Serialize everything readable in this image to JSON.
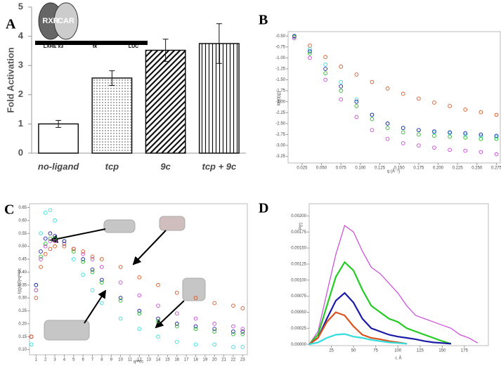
{
  "chart_data": [
    {
      "type": "bar",
      "panel": "A",
      "ylabel": "Fold Activation",
      "categories": [
        "no-ligand",
        "tcp",
        "9c",
        "tcp + 9c"
      ],
      "values": [
        1,
        2.57,
        3.52,
        3.75
      ],
      "errors": [
        0.12,
        0.25,
        0.38,
        0.68
      ],
      "fills": [
        "none",
        "dots",
        "diagonal",
        "vertical"
      ],
      "ylim": [
        0,
        5
      ],
      "yticks": [
        0,
        1,
        2,
        3,
        4,
        5
      ],
      "annotations": [
        "RXR",
        "CAR",
        "LXRE x3",
        "tk",
        "LUC"
      ]
    },
    {
      "type": "scatter",
      "panel": "B",
      "xlabel": "q (Å⁻¹)",
      "ylabel": "log(I(q))",
      "x": [
        0.015,
        0.035,
        0.055,
        0.075,
        0.095,
        0.115,
        0.135,
        0.155,
        0.175,
        0.195,
        0.215,
        0.235,
        0.255,
        0.275
      ],
      "series": [
        {
          "color": "#d9541e",
          "values": [
            -0.5,
            -0.72,
            -0.98,
            -1.2,
            -1.38,
            -1.55,
            -1.7,
            -1.82,
            -1.93,
            -2.02,
            -2.1,
            -2.18,
            -2.24,
            -2.3
          ]
        },
        {
          "color": "#33dddd",
          "values": [
            -0.5,
            -0.8,
            -1.15,
            -1.55,
            -1.95,
            -2.3,
            -2.5,
            -2.6,
            -2.65,
            -2.7,
            -2.72,
            -2.75,
            -2.78,
            -2.8
          ]
        },
        {
          "color": "#1a1aa8",
          "values": [
            -0.5,
            -0.85,
            -1.25,
            -1.65,
            -2.0,
            -2.3,
            -2.5,
            -2.6,
            -2.65,
            -2.68,
            -2.7,
            -2.72,
            -2.75,
            -2.78
          ]
        },
        {
          "color": "#22bb22",
          "values": [
            -0.52,
            -0.9,
            -1.35,
            -1.75,
            -2.1,
            -2.4,
            -2.6,
            -2.7,
            -2.75,
            -2.78,
            -2.8,
            -2.82,
            -2.85,
            -2.85
          ]
        },
        {
          "color": "#cc44d8",
          "values": [
            -0.55,
            -1.0,
            -1.5,
            -1.95,
            -2.35,
            -2.65,
            -2.85,
            -2.95,
            -3.0,
            -3.05,
            -3.1,
            -3.12,
            -3.15,
            -3.2
          ]
        }
      ],
      "xlim": [
        0.007,
        0.28
      ],
      "xticks": [
        0.025,
        {
          "value": 0.05,
          "label": "0.050"
        },
        0.075,
        {
          "value": 0.1,
          "label": "0.100"
        },
        0.125,
        {
          "value": 0.15,
          "label": "0.150"
        },
        0.175,
        {
          "value": 0.2,
          "label": "0.200"
        },
        0.225,
        {
          "value": 0.25,
          "label": "0.250"
        },
        0.275
      ],
      "ylim": [
        -3.4,
        -0.4
      ],
      "yticks": [
        {
          "value": -0.5,
          "label": "-0.50"
        },
        -0.75,
        {
          "value": -1,
          "label": "-1.00"
        },
        -1.25,
        {
          "value": -1.5,
          "label": "-1.50"
        },
        -1.75,
        {
          "value": -2,
          "label": "-2.00"
        },
        -2.25,
        {
          "value": -2.5,
          "label": "-2.50"
        },
        -2.75,
        {
          "value": -3,
          "label": "-3.00"
        },
        -3.25
      ]
    },
    {
      "type": "scatter",
      "panel": "C",
      "xlabel": "q²•Vc",
      "ylabel": "I(q)/I(0)•q²•Vc",
      "x": [
        0.5,
        1,
        1.5,
        2,
        2.5,
        3,
        4,
        5,
        6,
        7,
        8,
        10,
        12,
        14,
        16,
        18,
        20,
        22,
        23
      ],
      "series": [
        {
          "color": "#33dddd",
          "values": [
            0.12,
            0.35,
            0.55,
            0.63,
            0.64,
            0.6,
            0.52,
            0.45,
            0.39,
            0.33,
            0.28,
            0.22,
            0.18,
            0.15,
            0.13,
            0.12,
            0.12,
            0.11,
            0.11
          ]
        },
        {
          "color": "#1a1aa8",
          "values": [
            0.15,
            0.35,
            0.48,
            0.53,
            0.55,
            0.54,
            0.52,
            0.49,
            0.45,
            0.41,
            0.37,
            0.3,
            0.25,
            0.22,
            0.2,
            0.19,
            0.18,
            0.17,
            0.17
          ]
        },
        {
          "color": "#22bb22",
          "values": [
            0.15,
            0.33,
            0.46,
            0.51,
            0.53,
            0.53,
            0.51,
            0.48,
            0.44,
            0.4,
            0.36,
            0.29,
            0.24,
            0.21,
            0.19,
            0.18,
            0.17,
            0.16,
            0.16
          ]
        },
        {
          "color": "#cc44d8",
          "values": [
            0.15,
            0.33,
            0.45,
            0.5,
            0.52,
            0.52,
            0.51,
            0.49,
            0.47,
            0.45,
            0.42,
            0.36,
            0.31,
            0.27,
            0.24,
            0.22,
            0.2,
            0.19,
            0.18
          ]
        },
        {
          "color": "#d9541e",
          "values": [
            0.15,
            0.3,
            0.42,
            0.47,
            0.49,
            0.5,
            0.5,
            0.49,
            0.48,
            0.46,
            0.45,
            0.42,
            0.38,
            0.35,
            0.32,
            0.3,
            0.28,
            0.27,
            0.26
          ]
        }
      ],
      "xlim": [
        0.3,
        23.5
      ],
      "xticks": [
        1,
        2,
        3,
        4,
        5,
        6,
        7,
        8,
        9,
        10,
        11,
        12,
        13,
        14,
        15,
        16,
        17,
        18,
        19,
        20,
        21,
        22,
        23
      ],
      "ylim": [
        0.08,
        0.665
      ],
      "yticks": [
        {
          "value": 0.1,
          "label": "0.10"
        },
        0.15,
        {
          "value": 0.2,
          "label": "0.20"
        },
        0.25,
        {
          "value": 0.3,
          "label": "0.30"
        },
        0.35,
        {
          "value": 0.4,
          "label": "0.40"
        },
        0.45,
        {
          "value": 0.5,
          "label": "0.50"
        },
        0.55,
        {
          "value": 0.6,
          "label": "0.60"
        },
        0.65
      ]
    },
    {
      "type": "line",
      "panel": "D",
      "xlabel": "r, Å",
      "ylabel": "P(r)",
      "x": [
        0,
        10,
        20,
        30,
        40,
        50,
        60,
        70,
        80,
        90,
        100,
        110,
        120,
        130,
        140,
        150,
        160,
        170,
        180,
        190
      ],
      "series": [
        {
          "color": "#cc55d8",
          "values": [
            0,
            0.0002,
            0.0008,
            0.0014,
            0.00185,
            0.00175,
            0.00145,
            0.0012,
            0.0011,
            0.00095,
            0.0008,
            0.0006,
            0.00045,
            0.0004,
            0.00035,
            0.0003,
            0.00025,
            0.00015,
            0.0001,
            2e-05
          ]
        },
        {
          "color": "#22cc22",
          "values": [
            0,
            0.00015,
            0.0006,
            0.00105,
            0.00128,
            0.00115,
            0.00085,
            0.0006,
            0.0005,
            0.0004,
            0.00035,
            0.00025,
            0.0002,
            0.00015,
            0.0001,
            5e-05,
            1e-05,
            null,
            null,
            null
          ]
        },
        {
          "color": "#1a1aa8",
          "values": [
            0,
            0.0001,
            0.0004,
            0.00068,
            0.0008,
            0.00065,
            0.0004,
            0.00025,
            0.0002,
            0.00015,
            0.00012,
            0.0001,
            8e-05,
            5e-05,
            3e-05,
            2e-05,
            1e-05,
            null,
            null,
            null
          ]
        },
        {
          "color": "#d9541e",
          "values": [
            0,
            0.0001,
            0.00035,
            0.0005,
            0.00045,
            0.00028,
            0.00015,
            0.0001,
            8e-05,
            5e-05,
            3e-05,
            1e-05,
            null,
            null,
            null,
            null,
            null,
            null,
            null,
            null
          ]
        },
        {
          "color": "#33dddd",
          "values": [
            0,
            3e-05,
            0.0001,
            0.00015,
            0.00016,
            0.00012,
            0.0001,
            7e-05,
            5e-05,
            3e-05,
            2e-05,
            1e-05,
            null,
            null,
            null,
            null,
            null,
            null,
            null,
            null
          ]
        }
      ],
      "xlim": [
        0,
        202
      ],
      "xticks": [
        25,
        50,
        75,
        100,
        125,
        150,
        175
      ],
      "ylim": [
        -2e-05,
        0.00219
      ],
      "yticks": [
        {
          "value": 0,
          "label": "0.00000"
        },
        0.00025,
        {
          "value": 0.0005,
          "label": "0.00050"
        },
        0.00075,
        {
          "value": 0.001,
          "label": "0.00100"
        },
        0.00125,
        {
          "value": 0.0015,
          "label": "0.00150"
        },
        0.00175,
        {
          "value": 0.002,
          "label": "0.00200"
        }
      ]
    }
  ]
}
